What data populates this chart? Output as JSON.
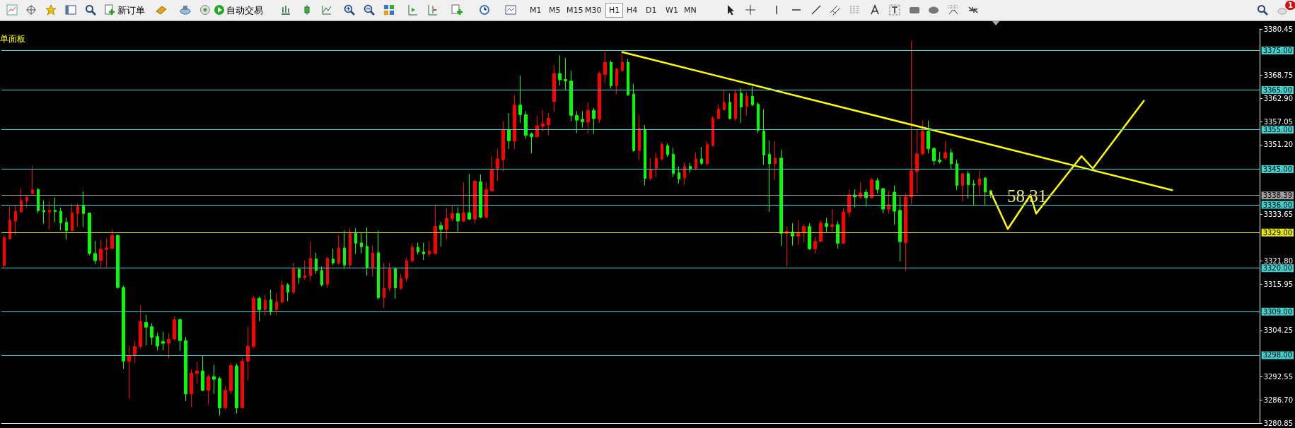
{
  "chart_data": {
    "type": "candlestick",
    "categories": [
      null,
      null,
      null,
      null,
      null,
      null,
      null,
      null,
      null,
      null,
      null,
      null,
      null,
      null,
      null,
      null,
      null,
      null,
      null,
      null,
      null,
      null,
      null,
      null,
      null,
      null,
      null,
      null,
      null,
      null,
      null,
      null,
      null,
      null,
      null,
      null,
      null,
      null,
      null,
      null,
      null,
      null,
      null,
      null,
      null,
      null,
      null,
      null,
      null,
      null,
      null,
      null,
      null,
      null,
      null,
      null,
      null,
      null,
      null,
      null,
      null,
      null,
      null,
      null,
      null,
      null,
      null,
      null,
      null,
      null,
      null,
      null,
      null,
      null,
      null,
      null,
      null,
      null,
      null,
      null,
      null,
      null,
      null,
      null,
      null,
      null,
      null,
      null,
      null,
      null,
      null,
      null,
      null,
      null,
      null,
      null,
      null,
      null,
      null,
      null,
      null,
      null,
      null,
      null,
      null,
      null,
      null,
      null,
      null,
      null,
      null,
      null,
      null,
      null,
      null,
      null,
      null,
      null,
      null,
      null,
      null,
      null,
      null,
      null,
      null,
      null,
      null,
      null,
      null,
      null,
      null,
      null,
      null,
      null,
      null,
      null,
      null,
      null,
      null,
      null,
      null,
      null,
      null,
      null,
      null,
      null,
      null,
      null,
      null,
      null,
      null,
      null,
      null,
      null,
      null,
      null,
      null,
      null,
      null,
      null,
      null,
      null,
      null,
      null,
      null,
      null,
      null,
      null,
      null,
      null,
      null,
      null,
      null,
      null,
      null,
      null,
      null,
      null,
      null,
      null,
      null,
      null,
      null,
      null,
      null,
      null,
      null,
      null,
      null,
      null,
      null,
      null,
      null,
      null,
      null,
      null,
      null,
      null,
      null,
      null,
      null,
      null,
      null,
      null,
      null,
      null,
      null,
      null,
      null,
      null,
      null,
      null,
      null,
      null,
      null,
      null,
      null,
      null,
      null,
      null,
      null,
      null
    ],
    "series": [
      {
        "type": "candlestick",
        "colors": [
          "#ff0000",
          "#ff0000",
          "#ff0000",
          "#ff0000",
          "#ff0000",
          "#ff0000",
          "#00ff00",
          "#00ff00",
          "#ff0000",
          "#00ff00",
          "#00ff00",
          "#00ff00",
          "#ff0000",
          "#ff0000",
          "#00ff00",
          "#00ff00",
          "#00ff00",
          "#ff0000",
          "#ff0000",
          "#ff0000",
          "#00ff00",
          "#00ff00",
          "#ff0000",
          "#ff0000",
          "#ff0000",
          "#00ff00",
          "#00ff00",
          "#00ff00",
          "#00ff00",
          "#ff0000",
          "#ff0000",
          "#00ff00",
          "#00ff00",
          "#ff0000",
          "#ff0000",
          "#00ff00",
          "#ff0000",
          "#00ff00",
          "#00ff00",
          "#ff0000",
          "#ff0000",
          "#00ff00",
          "#ff0000",
          "#ff0000",
          "#ff0000",
          "#00ff00",
          "#ff0000",
          "#00ff00",
          "#ff0000",
          "#ff0000",
          "#00ff00",
          "#ff0000",
          "#00ff00",
          "#ff0000",
          "#ff0000",
          "#00ff00",
          "#00ff00",
          "#ff0000",
          "#00ff00",
          "#ff0000",
          "#00ff00",
          "#ff0000",
          "#00ff00",
          "#00ff00",
          "#00ff00",
          "#ff0000",
          "#00ff00",
          "#ff0000",
          "#ff0000",
          "#00ff00",
          "#ff0000",
          "#ff0000",
          "#ff0000",
          "#00ff00",
          "#00ff00",
          "#ff0000",
          "#ff0000",
          "#00ff00",
          "#ff0000",
          "#ff0000",
          "#00ff00",
          "#ff0000",
          "#00ff00",
          "#ff0000",
          "#00ff00",
          "#ff0000",
          "#ff0000",
          "#ff0000",
          "#ff0000",
          "#00ff00",
          "#ff0000",
          "#00ff00",
          "#00ff00",
          "#00ff00",
          "#ff0000",
          "#ff0000",
          "#ff0000",
          "#ff0000",
          "#00ff00",
          "#00ff00",
          "#00ff00",
          "#00ff00",
          "#00ff00",
          "#ff0000",
          "#00ff00",
          "#ff0000",
          "#ff0000",
          "#00ff00",
          "#ff0000",
          "#ff0000",
          "#00ff00",
          "#00ff00",
          "#ff0000",
          "#00ff00",
          "#ff0000",
          "#ff0000",
          "#ff0000",
          "#00ff00",
          "#00ff00",
          "#00ff00",
          "#ff0000",
          "#00ff00",
          "#ff0000",
          "#00ff00",
          "#ff0000",
          "#ff0000",
          "#ff0000",
          "#ff0000",
          "#00ff00",
          "#ff0000",
          "#00ff00",
          "#ff0000",
          "#00ff00",
          "#00ff00",
          "#00ff00",
          "#00ff00",
          "#ff0000",
          "#00ff00",
          "#ff0000",
          "#00ff00",
          "#ff0000",
          "#ff0000",
          "#00ff00",
          "#ff0000",
          "#ff0000",
          "#00ff00",
          "#ff0000",
          "#00ff00",
          "#ff0000",
          "#ff0000",
          "#00ff00",
          "#ff0000",
          "#00ff00",
          "#ff0000",
          "#00ff00",
          "#00ff00",
          "#ff0000",
          "#00ff00",
          "#00ff00",
          "#ff0000",
          "#ff0000",
          "#ff0000",
          "#ff0000",
          "#00ff00",
          "#00ff00",
          "#00ff00",
          "#ff0000",
          "#00ff00",
          "#00ff00",
          "#ff0000",
          "#00ff00",
          "#00ff00",
          "#ff0000",
          "#00ff00",
          "#00ff00",
          null,
          null,
          null,
          null,
          null,
          null,
          null,
          null,
          null,
          null,
          null,
          null,
          null,
          null,
          null,
          null,
          null,
          null,
          null,
          null,
          null,
          null,
          null,
          null,
          null,
          null,
          null,
          null,
          null,
          null,
          null,
          null,
          null,
          null,
          null,
          null,
          null,
          null,
          null,
          null,
          null,
          null,
          null,
          null,
          null,
          null,
          null
        ],
        "ohlc": [
          [
            3320.7,
            3328.3,
            3320.1,
            3327.7
          ],
          [
            3327.4,
            3335.6,
            3327.2,
            3332.1
          ],
          [
            3331.9,
            3336.0,
            3328.4,
            3334.4
          ],
          [
            3334.2,
            3340.2,
            3334.0,
            3337.1
          ],
          [
            3337.0,
            3338.3,
            3335.3,
            3337.9
          ],
          [
            3338.8,
            3345.8,
            3338.7,
            3339.8
          ],
          [
            3339.9,
            3340.2,
            3333.9,
            3334.5
          ],
          [
            3334.6,
            3337.2,
            3331.2,
            3334.2
          ],
          [
            3334.2,
            3336.8,
            3329.7,
            3334.6
          ],
          [
            3334.6,
            3337.9,
            3331.6,
            3334.3
          ],
          [
            3334.4,
            3335.3,
            3329.5,
            3331.4
          ],
          [
            3331.6,
            3332.8,
            3327.2,
            3329.5
          ],
          [
            3329.5,
            3336.3,
            3329.3,
            3333.9
          ],
          [
            3333.8,
            3336.3,
            3330.4,
            3335.6
          ],
          [
            3335.8,
            3339.4,
            3330.4,
            3333.8
          ],
          [
            3333.9,
            3334.0,
            3323.3,
            3323.7
          ],
          [
            3323.7,
            3326.9,
            3321.0,
            3321.9
          ],
          [
            3321.9,
            3327.2,
            3320.2,
            3324.8
          ],
          [
            3324.7,
            3327.5,
            3320.0,
            3325.1
          ],
          [
            3325.0,
            3329.8,
            3324.8,
            3328.3
          ],
          [
            3328.3,
            3328.4,
            3314.8,
            3315.1
          ],
          [
            3315.1,
            3315.6,
            3294.5,
            3296.5
          ],
          [
            3296.5,
            3300.3,
            3287.0,
            3297.9
          ],
          [
            3298.1,
            3301.6,
            3296.0,
            3300.2
          ],
          [
            3300.2,
            3310.5,
            3299.6,
            3306.5
          ],
          [
            3306.3,
            3308.2,
            3300.5,
            3305.1
          ],
          [
            3305.2,
            3306.1,
            3300.6,
            3302.5
          ],
          [
            3302.7,
            3303.7,
            3299.1,
            3300.3
          ],
          [
            3301.5,
            3303.9,
            3299.2,
            3301.0
          ],
          [
            3301.0,
            3303.6,
            3297.2,
            3302.0
          ],
          [
            3302.1,
            3307.8,
            3301.7,
            3307.0
          ],
          [
            3307.0,
            3307.3,
            3299.1,
            3301.7
          ],
          [
            3301.7,
            3302.6,
            3286.5,
            3288.2
          ],
          [
            3288.2,
            3294.5,
            3284.8,
            3293.5
          ],
          [
            3293.4,
            3296.3,
            3290.8,
            3294.0
          ],
          [
            3294.0,
            3297.7,
            3288.9,
            3289.1
          ],
          [
            3289.1,
            3293.2,
            3285.4,
            3292.6
          ],
          [
            3292.6,
            3295.6,
            3288.2,
            3291.9
          ],
          [
            3292.1,
            3292.6,
            3282.7,
            3284.7
          ],
          [
            3284.7,
            3290.3,
            3284.3,
            3289.1
          ],
          [
            3289.0,
            3296.0,
            3288.2,
            3295.4
          ],
          [
            3295.3,
            3295.8,
            3283.3,
            3284.7
          ],
          [
            3284.7,
            3297.4,
            3284.6,
            3296.5
          ],
          [
            3296.5,
            3305.2,
            3291.7,
            3300.3
          ],
          [
            3300.2,
            3312.9,
            3299.8,
            3312.4
          ],
          [
            3312.4,
            3312.8,
            3306.6,
            3309.5
          ],
          [
            3309.5,
            3313.3,
            3308.1,
            3311.9
          ],
          [
            3312.0,
            3314.6,
            3308.1,
            3309.1
          ],
          [
            3309.5,
            3313.7,
            3308.1,
            3311.5
          ],
          [
            3311.4,
            3316.9,
            3311.1,
            3315.7
          ],
          [
            3315.8,
            3316.2,
            3311.7,
            3313.9
          ],
          [
            3313.9,
            3321.4,
            3313.4,
            3319.8
          ],
          [
            3319.7,
            3320.0,
            3316.0,
            3317.6
          ],
          [
            3317.6,
            3321.8,
            3317.1,
            3318.1
          ],
          [
            3318.1,
            3326.7,
            3316.7,
            3322.5
          ],
          [
            3322.3,
            3323.9,
            3318.6,
            3319.4
          ],
          [
            3319.4,
            3320.4,
            3315.4,
            3315.8
          ],
          [
            3315.9,
            3322.9,
            3315.0,
            3322.5
          ],
          [
            3322.3,
            3324.9,
            3320.8,
            3321.3
          ],
          [
            3321.2,
            3328.3,
            3320.8,
            3325.1
          ],
          [
            3325.1,
            3329.5,
            3319.8,
            3320.8
          ],
          [
            3320.8,
            3330.1,
            3319.9,
            3328.8
          ],
          [
            3328.8,
            3330.1,
            3323.6,
            3326.3
          ],
          [
            3326.4,
            3328.8,
            3323.7,
            3325.4
          ],
          [
            3325.5,
            3330.3,
            3318.1,
            3320.2
          ],
          [
            3320.2,
            3325.8,
            3318.0,
            3323.8
          ],
          [
            3323.9,
            3329.5,
            3312.0,
            3312.5
          ],
          [
            3312.5,
            3321.4,
            3310.0,
            3314.9
          ],
          [
            3314.9,
            3321.4,
            3314.1,
            3319.8
          ],
          [
            3319.8,
            3320.2,
            3312.3,
            3315.0
          ],
          [
            3314.9,
            3318.6,
            3314.5,
            3317.4
          ],
          [
            3317.4,
            3322.6,
            3316.6,
            3321.9
          ],
          [
            3321.8,
            3326.2,
            3321.4,
            3325.3
          ],
          [
            3325.3,
            3326.5,
            3323.4,
            3324.1
          ],
          [
            3324.1,
            3326.5,
            3322.0,
            3323.6
          ],
          [
            3323.6,
            3326.8,
            3322.8,
            3324.3
          ],
          [
            3323.7,
            3336.0,
            3323.4,
            3330.6
          ],
          [
            3330.8,
            3331.7,
            3325.4,
            3329.8
          ],
          [
            3329.8,
            3335.2,
            3327.2,
            3332.6
          ],
          [
            3332.5,
            3335.8,
            3331.9,
            3333.8
          ],
          [
            3333.8,
            3335.4,
            3329.3,
            3331.9
          ],
          [
            3331.9,
            3341.7,
            3331.6,
            3334.0
          ],
          [
            3334.0,
            3343.8,
            3332.2,
            3332.4
          ],
          [
            3332.4,
            3342.3,
            3331.2,
            3342.0
          ],
          [
            3341.8,
            3343.7,
            3332.6,
            3332.9
          ],
          [
            3332.9,
            3341.7,
            3332.6,
            3339.9
          ],
          [
            3339.5,
            3348.3,
            3339.4,
            3344.8
          ],
          [
            3345.0,
            3350.1,
            3342.0,
            3347.6
          ],
          [
            3347.4,
            3357.1,
            3344.4,
            3355.1
          ],
          [
            3355.0,
            3359.2,
            3350.1,
            3352.2
          ],
          [
            3352.1,
            3363.8,
            3350.1,
            3361.2
          ],
          [
            3361.2,
            3368.7,
            3356.7,
            3358.8
          ],
          [
            3358.8,
            3359.7,
            3352.7,
            3353.6
          ],
          [
            3353.9,
            3354.3,
            3349.0,
            3353.2
          ],
          [
            3353.2,
            3358.5,
            3353.0,
            3356.0
          ],
          [
            3355.8,
            3360.0,
            3354.6,
            3356.5
          ],
          [
            3356.2,
            3359.2,
            3353.6,
            3357.9
          ],
          [
            3362.1,
            3371.3,
            3359.5,
            3369.2
          ],
          [
            3369.2,
            3373.8,
            3366.2,
            3367.6
          ],
          [
            3367.7,
            3373.1,
            3365.0,
            3367.3
          ],
          [
            3367.3,
            3369.9,
            3357.1,
            3358.6
          ],
          [
            3358.6,
            3359.7,
            3354.1,
            3357.4
          ],
          [
            3357.6,
            3359.7,
            3355.5,
            3357.0
          ],
          [
            3356.9,
            3361.9,
            3353.9,
            3359.9
          ],
          [
            3359.9,
            3360.5,
            3353.9,
            3357.8
          ],
          [
            3357.6,
            3369.7,
            3356.7,
            3369.2
          ],
          [
            3368.9,
            3374.6,
            3366.8,
            3372.0
          ],
          [
            3372.0,
            3372.5,
            3365.4,
            3366.1
          ],
          [
            3366.1,
            3370.6,
            3364.0,
            3370.3
          ],
          [
            3369.9,
            3374.3,
            3369.6,
            3372.0
          ],
          [
            3372.0,
            3372.9,
            3363.5,
            3363.8
          ],
          [
            3364.0,
            3366.6,
            3349.4,
            3349.7
          ],
          [
            3349.7,
            3358.8,
            3347.2,
            3355.3
          ],
          [
            3355.1,
            3356.2,
            3340.9,
            3342.7
          ],
          [
            3342.7,
            3347.8,
            3342.2,
            3345.0
          ],
          [
            3345.0,
            3349.2,
            3343.0,
            3347.8
          ],
          [
            3347.6,
            3351.8,
            3347.2,
            3351.3
          ],
          [
            3350.9,
            3351.5,
            3348.1,
            3348.7
          ],
          [
            3348.8,
            3350.4,
            3343.0,
            3343.9
          ],
          [
            3344.1,
            3345.7,
            3341.3,
            3342.5
          ],
          [
            3342.8,
            3346.7,
            3341.1,
            3345.7
          ],
          [
            3345.7,
            3346.6,
            3344.1,
            3345.1
          ],
          [
            3345.1,
            3349.3,
            3344.8,
            3347.6
          ],
          [
            3347.6,
            3350.6,
            3346.1,
            3346.5
          ],
          [
            3346.4,
            3352.0,
            3345.8,
            3351.3
          ],
          [
            3351.0,
            3358.5,
            3350.8,
            3357.9
          ],
          [
            3357.8,
            3361.4,
            3357.6,
            3360.2
          ],
          [
            3360.0,
            3364.9,
            3359.9,
            3361.9
          ],
          [
            3361.9,
            3364.2,
            3357.6,
            3357.8
          ],
          [
            3357.8,
            3365.2,
            3357.2,
            3364.2
          ],
          [
            3364.2,
            3365.5,
            3356.7,
            3360.7
          ],
          [
            3360.9,
            3364.5,
            3358.5,
            3363.4
          ],
          [
            3363.4,
            3365.9,
            3360.9,
            3361.3
          ],
          [
            3361.4,
            3361.9,
            3354.1,
            3354.8
          ],
          [
            3354.6,
            3360.2,
            3346.1,
            3348.6
          ],
          [
            3348.8,
            3352.3,
            3334.2,
            3346.4
          ],
          [
            3346.4,
            3352.0,
            3342.3,
            3347.8
          ],
          [
            3347.8,
            3349.9,
            3325.6,
            3328.8
          ],
          [
            3328.8,
            3330.4,
            3320.4,
            3329.3
          ],
          [
            3329.1,
            3331.4,
            3325.7,
            3328.1
          ],
          [
            3328.1,
            3332.1,
            3325.9,
            3328.8
          ],
          [
            3328.9,
            3331.2,
            3326.5,
            3330.5
          ],
          [
            3330.5,
            3331.4,
            3324.6,
            3324.9
          ],
          [
            3324.9,
            3327.9,
            3323.7,
            3326.8
          ],
          [
            3326.8,
            3332.1,
            3326.5,
            3331.4
          ],
          [
            3331.3,
            3332.7,
            3329.2,
            3330.5
          ],
          [
            3330.5,
            3334.9,
            3329.2,
            3331.0
          ],
          [
            3331.0,
            3331.9,
            3324.9,
            3326.3
          ],
          [
            3326.3,
            3335.2,
            3326.1,
            3334.2
          ],
          [
            3334.1,
            3339.9,
            3332.9,
            3338.5
          ],
          [
            3338.5,
            3339.9,
            3335.4,
            3338.0
          ],
          [
            3338.0,
            3341.7,
            3337.5,
            3339.0
          ],
          [
            3339.2,
            3339.9,
            3335.6,
            3337.8
          ],
          [
            3337.8,
            3342.8,
            3337.6,
            3342.3
          ],
          [
            3342.1,
            3342.8,
            3338.9,
            3339.9
          ],
          [
            3340.1,
            3340.3,
            3333.8,
            3334.9
          ],
          [
            3334.9,
            3339.6,
            3333.8,
            3336.0
          ],
          [
            3339.2,
            3340.9,
            3331.0,
            3334.4
          ],
          [
            3334.6,
            3338.1,
            3321.7,
            3326.7
          ],
          [
            3326.5,
            3338.9,
            3319.2,
            3338.0
          ],
          [
            3338.0,
            3377.4,
            3336.1,
            3344.6
          ],
          [
            3344.4,
            3355.0,
            3338.9,
            3348.9
          ],
          [
            3348.9,
            3357.3,
            3348.5,
            3354.6
          ],
          [
            3354.6,
            3357.3,
            3349.0,
            3350.2
          ],
          [
            3350.3,
            3350.3,
            3346.0,
            3347.1
          ],
          [
            3347.3,
            3349.4,
            3346.4,
            3346.9
          ],
          [
            3347.8,
            3352.1,
            3347.4,
            3349.2
          ],
          [
            3349.2,
            3350.2,
            3344.9,
            3346.4
          ],
          [
            3346.4,
            3347.4,
            3339.7,
            3340.9
          ],
          [
            3340.9,
            3344.0,
            3336.8,
            3343.9
          ],
          [
            3343.9,
            3344.6,
            3337.6,
            3341.1
          ],
          [
            3341.3,
            3342.3,
            3336.0,
            3341.0
          ],
          [
            3341.0,
            3344.6,
            3338.3,
            3342.6
          ],
          [
            3342.8,
            3343.0,
            3336.0,
            3339.2
          ],
          [
            3339.6,
            3339.7,
            3337.8,
            3338.39
          ],
          null,
          null,
          null,
          null,
          null,
          null,
          null,
          null,
          null,
          null,
          null,
          null,
          null,
          null,
          null,
          null,
          null,
          null,
          null,
          null,
          null,
          null,
          null,
          null,
          null,
          null,
          null,
          null,
          null,
          null,
          null,
          null,
          null,
          null,
          null,
          null,
          null,
          null,
          null,
          null,
          null,
          null,
          null,
          null,
          null,
          null,
          null
        ]
      },
      {
        "type": "line",
        "color": "#ffff00",
        "values": [
          null,
          null,
          null,
          null,
          null,
          null,
          null,
          null,
          null,
          null,
          null,
          null,
          null,
          null,
          null,
          null,
          null,
          null,
          null,
          null,
          null,
          null,
          null,
          null,
          null,
          null,
          null,
          null,
          null,
          null,
          null,
          null,
          null,
          null,
          null,
          null,
          null,
          null,
          null,
          null,
          null,
          null,
          null,
          null,
          null,
          null,
          null,
          null,
          null,
          null,
          null,
          null,
          null,
          null,
          null,
          null,
          null,
          null,
          null,
          null,
          null,
          null,
          null,
          null,
          null,
          null,
          null,
          null,
          null,
          null,
          null,
          null,
          null,
          null,
          null,
          null,
          null,
          null,
          null,
          null,
          null,
          null,
          null,
          null,
          null,
          null,
          null,
          null,
          null,
          null,
          null,
          null,
          null,
          null,
          null,
          null,
          null,
          null,
          null,
          null,
          null,
          null,
          null,
          null,
          null,
          null,
          null,
          null,
          null,
          3374.6,
          null,
          null,
          null,
          null,
          null,
          null,
          null,
          null,
          null,
          null,
          null,
          null,
          null,
          null,
          null,
          null,
          null,
          null,
          null,
          null,
          null,
          null,
          null,
          null,
          null,
          null,
          null,
          null,
          null,
          null,
          null,
          null,
          null,
          null,
          null,
          null,
          null,
          null,
          null,
          null,
          null,
          null,
          null,
          null,
          null,
          null,
          null,
          null,
          null,
          null,
          null,
          null,
          null,
          null,
          null,
          null,
          null,
          null,
          null,
          null,
          null,
          null,
          null,
          null,
          null,
          null,
          null,
          null,
          null,
          null,
          null,
          null,
          null,
          null,
          null,
          null,
          null,
          null,
          null,
          null,
          null,
          null,
          null,
          null,
          null,
          null,
          null,
          null,
          null,
          null,
          null,
          null,
          null,
          null,
          null,
          null,
          3339.7,
          null,
          null,
          null,
          null,
          null,
          null,
          null,
          null,
          null,
          null,
          null,
          null,
          null,
          null,
          null
        ]
      },
      {
        "type": "line",
        "color": "#ffff00",
        "values": [
          null,
          null,
          null,
          null,
          null,
          null,
          null,
          null,
          null,
          null,
          null,
          null,
          null,
          null,
          null,
          null,
          null,
          null,
          null,
          null,
          null,
          null,
          null,
          null,
          null,
          null,
          null,
          null,
          null,
          null,
          null,
          null,
          null,
          null,
          null,
          null,
          null,
          null,
          null,
          null,
          null,
          null,
          null,
          null,
          null,
          null,
          null,
          null,
          null,
          null,
          null,
          null,
          null,
          null,
          null,
          null,
          null,
          null,
          null,
          null,
          null,
          null,
          null,
          null,
          null,
          null,
          null,
          null,
          null,
          null,
          null,
          null,
          null,
          null,
          null,
          null,
          null,
          null,
          null,
          null,
          null,
          null,
          null,
          null,
          null,
          null,
          null,
          null,
          null,
          null,
          null,
          null,
          null,
          null,
          null,
          null,
          null,
          null,
          null,
          null,
          null,
          null,
          null,
          null,
          null,
          null,
          null,
          null,
          null,
          null,
          null,
          null,
          null,
          null,
          null,
          null,
          null,
          null,
          null,
          null,
          null,
          null,
          null,
          null,
          null,
          null,
          null,
          null,
          null,
          null,
          null,
          null,
          null,
          null,
          null,
          null,
          null,
          null,
          null,
          null,
          null,
          null,
          null,
          null,
          null,
          null,
          null,
          null,
          null,
          null,
          null,
          null,
          null,
          null,
          null,
          null,
          null,
          null,
          null,
          null,
          null,
          null,
          null,
          null,
          null,
          null,
          null,
          null,
          null,
          null,
          null,
          null,
          null,
          null,
          3339.2,
          null,
          null,
          3329.9,
          null,
          null,
          null,
          3338.5,
          3333.8,
          null,
          null,
          null,
          null,
          null,
          null,
          null,
          3348.3,
          null,
          3345.2,
          null,
          null,
          null,
          null,
          null,
          null,
          null,
          null,
          3362.3,
          null,
          null,
          null,
          null,
          null,
          null,
          null,
          null,
          null,
          null,
          null,
          null,
          null,
          null,
          null,
          null,
          null,
          null,
          null,
          null
        ]
      }
    ],
    "ylim": [
      3280.85,
      3380.45
    ],
    "yticks": [
      3380.45,
      3368.75,
      {
        "value": 3362.9,
        "label": "3362.90"
      },
      3357.05,
      {
        "value": 3351.2,
        "label": "3351.20"
      },
      3333.65,
      {
        "value": 3321.8,
        "label": "3321.80"
      },
      3315.95,
      3304.25,
      3292.55,
      {
        "value": 3286.7,
        "label": "3286.70"
      },
      3280.85
    ],
    "ref_lines": [
      {
        "axis": "y",
        "value": 3375,
        "label": "3375.00",
        "color": "#3fd0d0"
      },
      {
        "axis": "y",
        "value": 3365,
        "label": "3365.00",
        "color": "#3fd0d0"
      },
      {
        "axis": "y",
        "value": 3355,
        "label": "3355.00",
        "color": "#3fd0d0"
      },
      {
        "axis": "y",
        "value": 3345,
        "label": "3345.00",
        "color": "#3fd0d0"
      },
      {
        "axis": "y",
        "value": 3338.39,
        "label": "3338.39",
        "color": "#a0a0a0"
      },
      {
        "axis": "y",
        "value": 3336,
        "label": "3336.00",
        "color": "#3fd0d0"
      },
      {
        "axis": "y",
        "value": 3329,
        "label": "3329.00",
        "color": "#e8e800"
      },
      {
        "axis": "y",
        "value": 3320,
        "label": "3320.00",
        "color": "#3fd0d0"
      },
      {
        "axis": "y",
        "value": 3309,
        "label": "3309.00",
        "color": "#3fd0d0"
      },
      {
        "axis": "y",
        "value": 3298,
        "label": "3298.00",
        "color": "#3fd0d0"
      }
    ],
    "annotations": [
      "单面板",
      "58.31",
      "新订单",
      "自动交易",
      "M1",
      "M5",
      "M15",
      "M30",
      "H1",
      "H4",
      "D1",
      "W1",
      "MN",
      "1"
    ],
    "tick_labels": "y",
    "marker": "none",
    "line_style": "solid"
  }
}
